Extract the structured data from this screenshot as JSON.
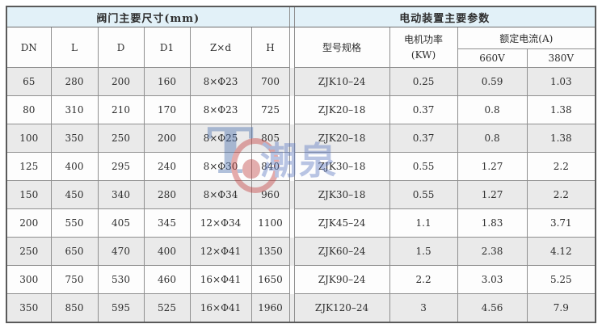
{
  "table": {
    "left_title": "阀门主要尺寸(mm)",
    "right_title": "电动装置主要参数",
    "dim_cols": [
      "DN",
      "L",
      "D",
      "D1",
      "Z×d",
      "H"
    ],
    "model_col": "型号规格",
    "power_line1": "电机功率",
    "power_line2": "(KW)",
    "current_group": "额定电流(A)",
    "current_cols": [
      "660V",
      "380V"
    ],
    "rows": [
      {
        "dn": "65",
        "l": "280",
        "d": "200",
        "d1": "160",
        "zd": "8×Φ23",
        "h": "700",
        "model": "ZJK10–24",
        "kw": "0.25",
        "a660": "0.59",
        "a380": "1.03"
      },
      {
        "dn": "80",
        "l": "310",
        "d": "210",
        "d1": "170",
        "zd": "8×Φ23",
        "h": "725",
        "model": "ZJK20–18",
        "kw": "0.37",
        "a660": "0.8",
        "a380": "1.38"
      },
      {
        "dn": "100",
        "l": "350",
        "d": "250",
        "d1": "200",
        "zd": "8×Φ25",
        "h": "805",
        "model": "ZJK20–18",
        "kw": "0.37",
        "a660": "0.8",
        "a380": "1.38"
      },
      {
        "dn": "125",
        "l": "400",
        "d": "295",
        "d1": "240",
        "zd": "8×Φ30",
        "h": "840",
        "model": "ZJK30–18",
        "kw": "0.55",
        "a660": "1.27",
        "a380": "2.2"
      },
      {
        "dn": "150",
        "l": "450",
        "d": "340",
        "d1": "280",
        "zd": "8×Φ34",
        "h": "960",
        "model": "ZJK30–18",
        "kw": "0.55",
        "a660": "1.27",
        "a380": "2.2"
      },
      {
        "dn": "200",
        "l": "550",
        "d": "405",
        "d1": "345",
        "zd": "12×Φ34",
        "h": "1100",
        "model": "ZJK45–24",
        "kw": "1.1",
        "a660": "1.83",
        "a380": "3.71"
      },
      {
        "dn": "250",
        "l": "650",
        "d": "470",
        "d1": "400",
        "zd": "12×Φ41",
        "h": "1350",
        "model": "ZJK60–24",
        "kw": "1.5",
        "a660": "2.38",
        "a380": "4.12"
      },
      {
        "dn": "300",
        "l": "750",
        "d": "530",
        "d1": "460",
        "zd": "16×Φ41",
        "h": "1650",
        "model": "ZJK90–24",
        "kw": "2.2",
        "a660": "3.03",
        "a380": "5.25"
      },
      {
        "dn": "350",
        "l": "850",
        "d": "595",
        "d1": "525",
        "zd": "16×Φ41",
        "h": "1960",
        "model": "ZJK120–24",
        "kw": "3",
        "a660": "4.56",
        "a380": "7.9"
      }
    ]
  },
  "watermark": {
    "glyph": "T",
    "text": "潮泉"
  },
  "colors": {
    "title_bg": "#e2f1f8",
    "row_alt_bg": "#eaeaea",
    "inner_border": "#8f8f8f",
    "outer_border": "#5a5a5a",
    "watermark_blue": "#5a77c0",
    "watermark_red": "#c43c3c"
  }
}
